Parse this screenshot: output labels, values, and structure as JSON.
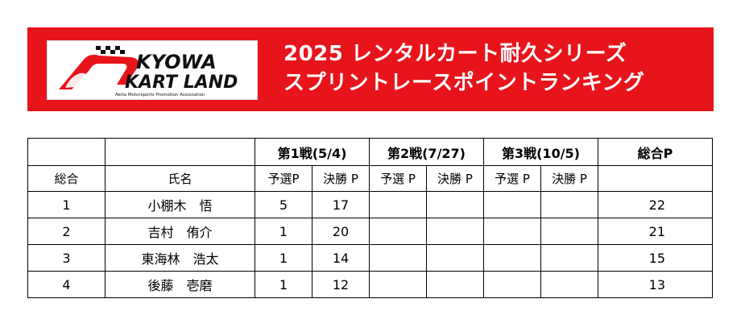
{
  "header": {
    "logo": {
      "line1": "KYOWA",
      "line2": "KART LAND",
      "tagline": "Akita Motorsports Promotion Association"
    },
    "title_line1": "2025 レンタルカート耐久シリーズ",
    "title_line2": "スプリントレースポイントランキング"
  },
  "table": {
    "rounds": [
      "第1戦(5/4)",
      "第2戦(7/27)",
      "第3戦(10/5)"
    ],
    "total_header": "総合P",
    "col_rank": "総合",
    "col_name": "氏名",
    "sub_qualifying": "予選P",
    "sub_final": "決勝 P",
    "sub_qualifying2": "予選 P",
    "sub_final2": "決勝 P",
    "sub_qualifying3": "予選 P",
    "sub_final3": "決勝 P",
    "rows": [
      {
        "rank": "1",
        "name": "小棚木　悟",
        "r1_q": "5",
        "r1_f": "17",
        "r2_q": "",
        "r2_f": "",
        "r3_q": "",
        "r3_f": "",
        "total": "22"
      },
      {
        "rank": "2",
        "name": "吉村　侑介",
        "r1_q": "1",
        "r1_f": "20",
        "r2_q": "",
        "r2_f": "",
        "r3_q": "",
        "r3_f": "",
        "total": "21"
      },
      {
        "rank": "3",
        "name": "東海林　浩太",
        "r1_q": "1",
        "r1_f": "14",
        "r2_q": "",
        "r2_f": "",
        "r3_q": "",
        "r3_f": "",
        "total": "15"
      },
      {
        "rank": "4",
        "name": "後藤　壱磨",
        "r1_q": "1",
        "r1_f": "12",
        "r2_q": "",
        "r2_f": "",
        "r3_q": "",
        "r3_f": "",
        "total": "13"
      }
    ]
  },
  "colors": {
    "banner": "#e8141c",
    "logo_text": "#111111",
    "logo_accent": "#e8141c"
  }
}
